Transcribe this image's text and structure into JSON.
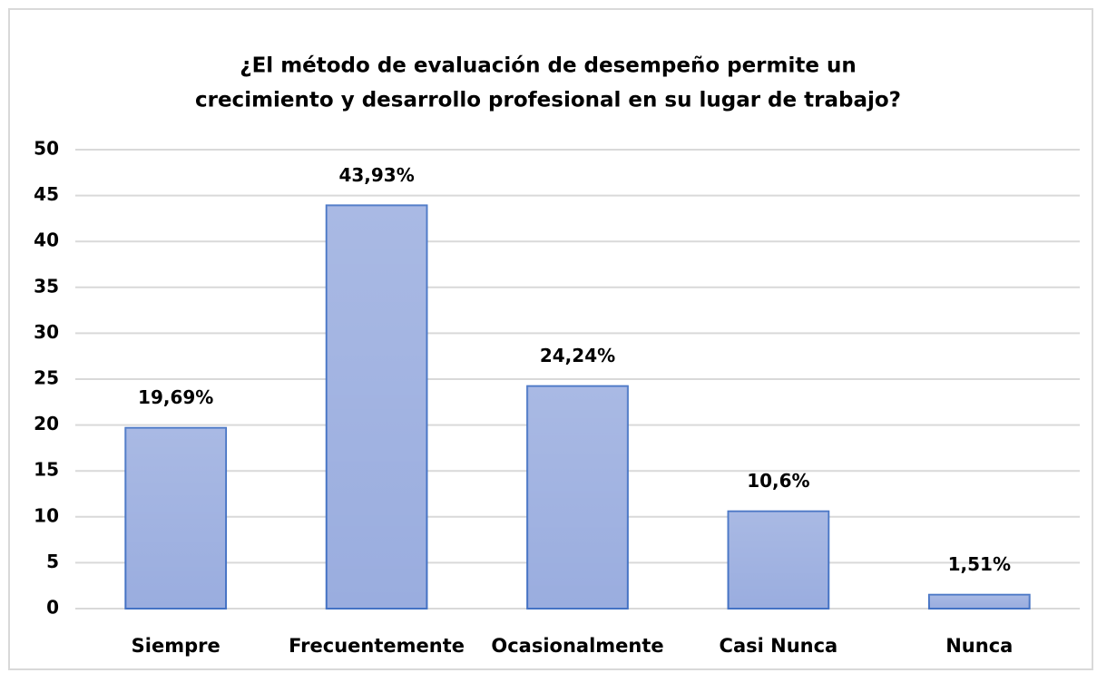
{
  "chart_data": {
    "type": "bar",
    "title": [
      "¿El método de evaluación de desempeño permite un",
      "crecimiento y desarrollo profesional en su lugar de trabajo?"
    ],
    "categories": [
      "Siempre",
      "Frecuentemente",
      "Ocasionalmente",
      "Casi Nunca",
      "Nunca"
    ],
    "values": [
      19.69,
      43.93,
      24.24,
      10.6,
      1.51
    ],
    "value_labels": [
      "19,69%",
      "43,93%",
      "24,24%",
      "10,6%",
      "1,51%"
    ],
    "color": "#9aaddf",
    "edgecolor": "#4472c4",
    "ylim": [
      0,
      50
    ],
    "yticks": [
      0,
      5,
      10,
      15,
      20,
      25,
      30,
      35,
      40,
      45,
      50
    ],
    "grid": true
  }
}
